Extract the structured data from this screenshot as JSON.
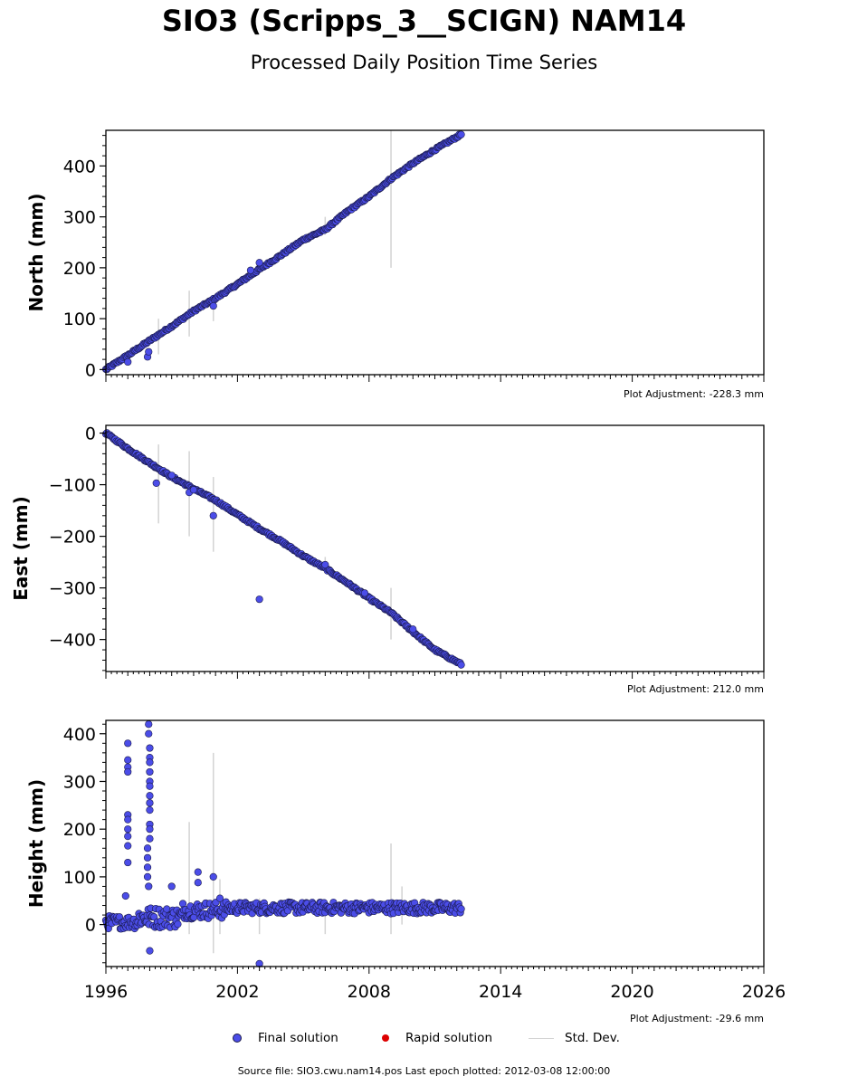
{
  "title": "SIO3 (Scripps_3__SCIGN) NAM14",
  "subtitle": "Processed Daily Position Time Series",
  "footer": "Source file: SIO3.cwu.nam14.pos  Last epoch plotted: 2012-03-08 12:00:00",
  "legend": {
    "final": "Final solution",
    "rapid": "Rapid solution",
    "std": "Std. Dev."
  },
  "colors": {
    "final": "#4b4de8",
    "final_edge": "#1a1a4a",
    "rapid": "#dd0000",
    "std": "#d3d3d3"
  },
  "chart_data": [
    {
      "type": "scatter",
      "ylabel": "North (mm)",
      "adjustment": "Plot Adjustment: -228.3 mm",
      "xlim": [
        1996,
        2026
      ],
      "ylim": [
        -10,
        470
      ],
      "yticks": [
        0,
        100,
        200,
        300,
        400
      ],
      "trend": [
        [
          1996.0,
          0
        ],
        [
          1997.0,
          28
        ],
        [
          1998.0,
          57
        ],
        [
          1999.0,
          85
        ],
        [
          2000.0,
          115
        ],
        [
          2001.0,
          140
        ],
        [
          2002.0,
          168
        ],
        [
          2003.0,
          197
        ],
        [
          2004.0,
          225
        ],
        [
          2005.0,
          255
        ],
        [
          2006.0,
          275
        ],
        [
          2007.0,
          310
        ],
        [
          2008.0,
          340
        ],
        [
          2009.0,
          375
        ],
        [
          2010.0,
          405
        ],
        [
          2011.0,
          432
        ],
        [
          2012.2,
          462
        ]
      ],
      "outliers": [
        [
          1997.9,
          25
        ],
        [
          1997.95,
          35
        ],
        [
          1997.0,
          15
        ],
        [
          2000.9,
          125
        ],
        [
          2002.6,
          195
        ],
        [
          2003.0,
          210
        ]
      ],
      "error_bars": [
        [
          1998.4,
          30,
          100
        ],
        [
          1999.8,
          65,
          155
        ],
        [
          2000.9,
          95,
          140
        ],
        [
          2009.0,
          200,
          470
        ],
        [
          2006.0,
          265,
          300
        ]
      ],
      "xticks": [
        1996,
        2002,
        2008,
        2014,
        2020,
        2026
      ]
    },
    {
      "type": "scatter",
      "ylabel": "East (mm)",
      "adjustment": "Plot Adjustment: 212.0 mm",
      "xlim": [
        1996,
        2026
      ],
      "ylim": [
        -462,
        15
      ],
      "yticks": [
        0,
        -100,
        -200,
        -300,
        -400
      ],
      "trend": [
        [
          1996.0,
          0
        ],
        [
          1997.0,
          -30
        ],
        [
          1998.0,
          -58
        ],
        [
          1999.0,
          -85
        ],
        [
          2000.0,
          -108
        ],
        [
          2001.0,
          -130
        ],
        [
          2002.0,
          -158
        ],
        [
          2003.0,
          -185
        ],
        [
          2004.0,
          -210
        ],
        [
          2005.0,
          -238
        ],
        [
          2006.0,
          -262
        ],
        [
          2007.0,
          -290
        ],
        [
          2008.0,
          -320
        ],
        [
          2009.0,
          -348
        ],
        [
          2010.0,
          -385
        ],
        [
          2011.0,
          -420
        ],
        [
          2012.2,
          -448
        ]
      ],
      "outliers": [
        [
          1998.3,
          -97
        ],
        [
          1999.0,
          -82
        ],
        [
          1999.8,
          -115
        ],
        [
          2000.0,
          -110
        ],
        [
          2000.9,
          -160
        ],
        [
          2003.0,
          -322
        ],
        [
          2006.0,
          -255
        ],
        [
          2007.8,
          -310
        ],
        [
          2010.0,
          -380
        ]
      ],
      "error_bars": [
        [
          1998.4,
          -175,
          -22
        ],
        [
          1999.8,
          -200,
          -35
        ],
        [
          2000.9,
          -230,
          -85
        ],
        [
          2009.0,
          -400,
          -300
        ],
        [
          2006.0,
          -270,
          -240
        ]
      ],
      "xticks": [
        1996,
        2002,
        2008,
        2014,
        2020,
        2026
      ]
    },
    {
      "type": "scatter",
      "ylabel": "Height (mm)",
      "adjustment": "Plot Adjustment: -29.6 mm",
      "xlim": [
        1996,
        2026
      ],
      "ylim": [
        -88,
        428
      ],
      "yticks": [
        0,
        100,
        200,
        300,
        400
      ],
      "xticks": [
        1996,
        2002,
        2008,
        2014,
        2020,
        2026
      ],
      "xticklabels": [
        "1996",
        "2002",
        "2008",
        "2014",
        "2020",
        "2026"
      ],
      "outliers": [
        [
          1997.0,
          380
        ],
        [
          1997.0,
          345
        ],
        [
          1997.0,
          330
        ],
        [
          1997.0,
          320
        ],
        [
          1997.0,
          230
        ],
        [
          1997.0,
          220
        ],
        [
          1997.0,
          200
        ],
        [
          1997.0,
          185
        ],
        [
          1997.0,
          165
        ],
        [
          1997.0,
          130
        ],
        [
          1996.9,
          60
        ],
        [
          1997.95,
          420
        ],
        [
          1997.95,
          400
        ],
        [
          1998.0,
          370
        ],
        [
          1998.0,
          350
        ],
        [
          1998.0,
          340
        ],
        [
          1998.0,
          320
        ],
        [
          1998.0,
          300
        ],
        [
          1998.0,
          290
        ],
        [
          1998.0,
          270
        ],
        [
          1998.0,
          255
        ],
        [
          1998.0,
          240
        ],
        [
          1998.0,
          210
        ],
        [
          1998.0,
          200
        ],
        [
          1998.0,
          180
        ],
        [
          1997.9,
          160
        ],
        [
          1997.9,
          140
        ],
        [
          1997.9,
          120
        ],
        [
          1997.9,
          100
        ],
        [
          1997.95,
          80
        ],
        [
          1998.0,
          -55
        ],
        [
          1999.0,
          80
        ],
        [
          2000.2,
          110
        ],
        [
          2000.2,
          88
        ],
        [
          2000.9,
          100
        ],
        [
          2003.0,
          -82
        ],
        [
          2001.2,
          55
        ]
      ],
      "error_bars": [
        [
          1999.8,
          -20,
          215
        ],
        [
          2000.9,
          -60,
          360
        ],
        [
          2001.2,
          -20,
          95
        ],
        [
          2003.0,
          -20,
          55
        ],
        [
          2006.0,
          -20,
          30
        ],
        [
          2009.0,
          -20,
          170
        ],
        [
          2009.5,
          0,
          80
        ]
      ],
      "band_start": 1996.0,
      "band_end": 2012.2
    }
  ]
}
